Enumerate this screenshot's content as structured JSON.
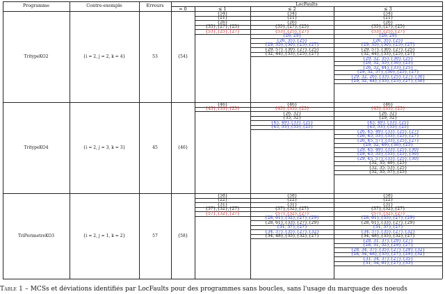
{
  "headers": {
    "programme": "Programme",
    "contre_exemple": "Contre-exemple",
    "erreurs": "Erreurs",
    "locfaults": "LocFaults",
    "k0": "= 0",
    "k1": "≤ 1",
    "k2": "≤ 2",
    "k3": "≤ 3"
  },
  "rows": [
    {
      "programme": "TritypeKO2",
      "contre_exemple": "{i = 2, j = 2, k = 4}",
      "erreurs": "53",
      "k0": "{54}",
      "k1": [
        {
          "text": "{54}",
          "c": "k"
        },
        {
          "text": "{21}",
          "c": "k"
        },
        {
          "text": "{26}",
          "c": "k"
        },
        {
          "text": "{35},{27},{25}",
          "c": "k"
        },
        {
          "text": "{53},{25},{27}",
          "c": "r"
        }
      ],
      "k2": [
        {
          "text": "{54}",
          "c": "k"
        },
        {
          "text": "{21}",
          "c": "k"
        },
        {
          "text": "{26}",
          "c": "k"
        },
        {
          "text": "{35},{27},{25}",
          "c": "k"
        },
        {
          "text": "{53},{25},{27}",
          "c": "r"
        },
        {
          "text": "{26, 29}",
          "c": "b"
        },
        {
          "text": "{26, 35},{25}",
          "c": "b"
        },
        {
          "text": "{29, 35},{30},{25},{27}",
          "c": "b"
        },
        {
          "text": "{29, 57},{30},{27},{25}",
          "c": "k"
        },
        {
          "text": "{32, 44},{33},{25},{27}",
          "c": "k"
        }
      ],
      "k3": [
        {
          "text": "{54}",
          "c": "k"
        },
        {
          "text": "{21}",
          "c": "k"
        },
        {
          "text": "{26}",
          "c": "k"
        },
        {
          "text": "{35},{27},{25}",
          "c": "k"
        },
        {
          "text": "{53},{25},{27}",
          "c": "r"
        },
        {
          "text": "{26, 29}",
          "c": "b"
        },
        {
          "text": "{26, 35},{25}",
          "c": "b"
        },
        {
          "text": "{29, 35},{30},{25},{27}",
          "c": "b"
        },
        {
          "text": "{29, 57},{30},{27},{25}",
          "c": "k"
        },
        {
          "text": "{32, 44},{33},{25},{27}",
          "c": "k"
        },
        {
          "text": "{29, 32, 35},{30},{25}",
          "c": "b"
        },
        {
          "text": "{26, 32, 35},{30},{25}",
          "c": "b"
        },
        {
          "text": "{26, 32, 44},{33},{25}",
          "c": "b"
        },
        {
          "text": "{29, 32, 57},{30},{25},{27}",
          "c": "b"
        },
        {
          "text": "{29, 32, 26},{33},{25},{27},{30}",
          "c": "b"
        },
        {
          "text": "{29, 32, 44},{33},{25},{27},{30}",
          "c": "b"
        }
      ]
    },
    {
      "programme": "TritypeKO4",
      "contre_exemple": "{i = 2, j = 3, k = 3}",
      "erreurs": "45",
      "k0": "{46}",
      "k1": [
        {
          "text": "{46}",
          "c": "k"
        },
        {
          "text": "{45},{33},{25}",
          "c": "r"
        }
      ],
      "k2": [
        {
          "text": "{46}",
          "c": "k"
        },
        {
          "text": "{45},{33},{25}",
          "c": "r"
        },
        {
          "text": "{26, 32}",
          "c": "k"
        },
        {
          "text": "{35, 32}",
          "c": "k"
        },
        {
          "text": "{45, 49},{33},{25}",
          "c": "b"
        },
        {
          "text": "{45, 53},{33},{25}",
          "c": "b"
        }
      ],
      "k3": [
        {
          "text": "{46}",
          "c": "k"
        },
        {
          "text": "{45},{33},{25}",
          "c": "r"
        },
        {
          "text": "{26, 32}",
          "c": "k"
        },
        {
          "text": "{29, 32}",
          "c": "k"
        },
        {
          "text": "{45, 49},{33},{25}",
          "c": "b"
        },
        {
          "text": "{45, 53},{33},{25}",
          "c": "b"
        },
        {
          "text": "{26, 45, 49},{33},{25},{27}",
          "c": "b"
        },
        {
          "text": "{26, 45, 53},{33},{25},{27}",
          "c": "b"
        },
        {
          "text": "{26, 45, 57},{33},{25},{27}",
          "c": "b"
        },
        {
          "text": "{29, 32, 49},{30},{25}",
          "c": "b"
        },
        {
          "text": "{29, 45, 49},{33},{25},{30}",
          "c": "b"
        },
        {
          "text": "{29, 45, 53},{33},{25},{30}",
          "c": "b"
        },
        {
          "text": "{29, 45, 57},{33},{25},{30}",
          "c": "b"
        },
        {
          "text": "{32, 35, 49},{25}",
          "c": "k"
        },
        {
          "text": "{32, 35, 53},{25}",
          "c": "k"
        },
        {
          "text": "{32, 35, 57},{25}",
          "c": "k"
        }
      ]
    },
    {
      "programme": "TriPerimetreKO3",
      "contre_exemple": "{i = 2, j = 1, k = 2}",
      "erreurs": "57",
      "k0": "{58}",
      "k1": [
        {
          "text": "{58}",
          "c": "k"
        },
        {
          "text": "{22}",
          "c": "k"
        },
        {
          "text": "{31}",
          "c": "k"
        },
        {
          "text": "{37},{32},{27}",
          "c": "k"
        },
        {
          "text": "{57},{32},{27}",
          "c": "r"
        }
      ],
      "k2": [
        {
          "text": "{58}",
          "c": "k"
        },
        {
          "text": "{22}",
          "c": "k"
        },
        {
          "text": "{31}",
          "c": "k"
        },
        {
          "text": "{37},{32},{27}",
          "c": "k"
        },
        {
          "text": "{57},{32},{27}",
          "c": "r"
        },
        {
          "text": "{28, 61},{32},{27},{29}",
          "c": "b"
        },
        {
          "text": "{28, 61},{33},{27},{29}",
          "c": "k"
        },
        {
          "text": "{31, 37},{27}",
          "c": "b"
        },
        {
          "text": "{34, 37},{35},{27},{32}",
          "c": "b"
        },
        {
          "text": "{34, 48},{35},{32},{27}",
          "c": "k"
        }
      ],
      "k3": [
        {
          "text": "{58}",
          "c": "k"
        },
        {
          "text": "{22}",
          "c": "k"
        },
        {
          "text": "{31}",
          "c": "k"
        },
        {
          "text": "{37},{32},{27}",
          "c": "k"
        },
        {
          "text": "{57},{32},{27}",
          "c": "r"
        },
        {
          "text": "{28, 61},{33},{27},{29}",
          "c": "b"
        },
        {
          "text": "{28, 61},{33},{27},{29}",
          "c": "k"
        },
        {
          "text": "{31, 37},{27}",
          "c": "b"
        },
        {
          "text": "{34, 37},{35},{27},{32}",
          "c": "b"
        },
        {
          "text": "{34, 48},{35},{32},{27}",
          "c": "k"
        },
        {
          "text": "{28, 31, 37},{29},{27}",
          "c": "b"
        },
        {
          "text": "{28, 31, 52},{29},{27}",
          "c": "b"
        },
        {
          "text": "{28, 34, 37},{35},{27},{29},{32}",
          "c": "b"
        },
        {
          "text": "{28, 34, 48},{35},{27},{29},{32}",
          "c": "b"
        },
        {
          "text": "{31, 34, 37},{27},{35}",
          "c": "b"
        },
        {
          "text": "{31, 34, 61},{27},{35}",
          "c": "b"
        }
      ]
    }
  ],
  "caption": {
    "label": "Table 1 –",
    "text": " MCSs et déviations identifiés par LocFaults pour des programmes sans boucles, sans l'usage du marquage des noeuds"
  }
}
